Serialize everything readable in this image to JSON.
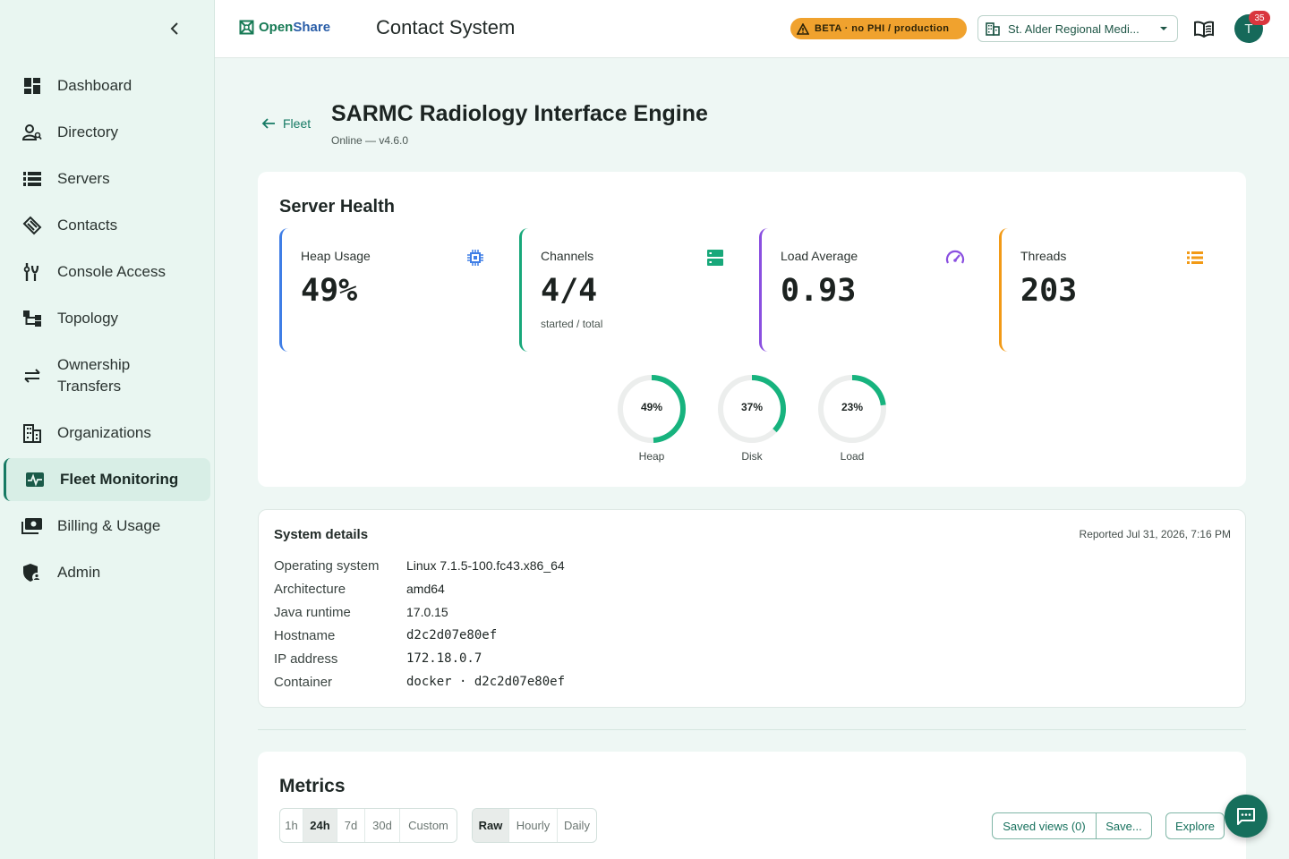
{
  "sidebar": {
    "collapse_icon": "chevron-left-icon",
    "items": [
      {
        "label": "Dashboard",
        "icon": "dashboard-icon"
      },
      {
        "label": "Directory",
        "icon": "person-search-icon"
      },
      {
        "label": "Servers",
        "icon": "server-list-icon"
      },
      {
        "label": "Contacts",
        "icon": "contacts-icon"
      },
      {
        "label": "Console Access",
        "icon": "console-access-icon"
      },
      {
        "label": "Topology",
        "icon": "topology-icon"
      },
      {
        "label": "Ownership Transfers",
        "icon": "transfer-arrows-icon"
      },
      {
        "label": "Organizations",
        "icon": "organization-icon"
      },
      {
        "label": "Fleet Monitoring",
        "icon": "monitoring-icon",
        "active": true
      },
      {
        "label": "Billing & Usage",
        "icon": "billing-icon"
      },
      {
        "label": "Admin",
        "icon": "admin-shield-icon"
      }
    ]
  },
  "header": {
    "brand_part1": "Open",
    "brand_part2": "Share",
    "title": "Contact System",
    "beta_label": "BETA · no PHI / production",
    "org_selector": "St. Alder Regional Medi...",
    "notification_count": "35",
    "avatar_initial": "T"
  },
  "page": {
    "back_label": "Fleet",
    "title": "SARMC Radiology Interface Engine",
    "subtitle": "Online — v4.6.0"
  },
  "health": {
    "title": "Server Health",
    "stats": [
      {
        "label": "Heap Usage",
        "value": "49%",
        "sub": "",
        "icon": "cpu-chip-icon",
        "color": "#3f7ee6"
      },
      {
        "label": "Channels",
        "value": "4/4",
        "sub": "started / total",
        "icon": "storage-icon",
        "color": "#18a87a"
      },
      {
        "label": "Load Average",
        "value": "0.93",
        "sub": "",
        "icon": "speedometer-icon",
        "color": "#8a4fe0"
      },
      {
        "label": "Threads",
        "value": "203",
        "sub": "",
        "icon": "list-icon",
        "color": "#f29a16"
      }
    ],
    "gauges": [
      {
        "label": "Heap",
        "text": "49%",
        "value": 0.49
      },
      {
        "label": "Disk",
        "text": "37%",
        "value": 0.37
      },
      {
        "label": "Load",
        "text": "23%",
        "value": 0.23
      }
    ],
    "gauge_color": "#17b37e",
    "gauge_track_color": "#eceeed"
  },
  "details": {
    "title": "System details",
    "reported": "Reported Jul 31, 2026, 7:16 PM",
    "rows": [
      {
        "key": "Operating system",
        "value": "Linux 7.1.5-100.fc43.x86_64"
      },
      {
        "key": "Architecture",
        "value": "amd64"
      },
      {
        "key": "Java runtime",
        "value": "17.0.15"
      },
      {
        "key": "Hostname",
        "value": "d2c2d07e80ef"
      },
      {
        "key": "IP address",
        "value": "172.18.0.7"
      },
      {
        "key": "Container",
        "value": "docker · d2c2d07e80ef"
      }
    ]
  },
  "metrics": {
    "title": "Metrics",
    "ranges": [
      "1h",
      "24h",
      "7d",
      "30d",
      "Custom"
    ],
    "range_selected": "24h",
    "granularity": [
      "Raw",
      "Hourly",
      "Daily"
    ],
    "granularity_selected": "Raw",
    "saved_views_label": "Saved views (0)",
    "save_label": "Save...",
    "explore_label": "Explore"
  },
  "fab_icon": "feedback-chat-icon"
}
